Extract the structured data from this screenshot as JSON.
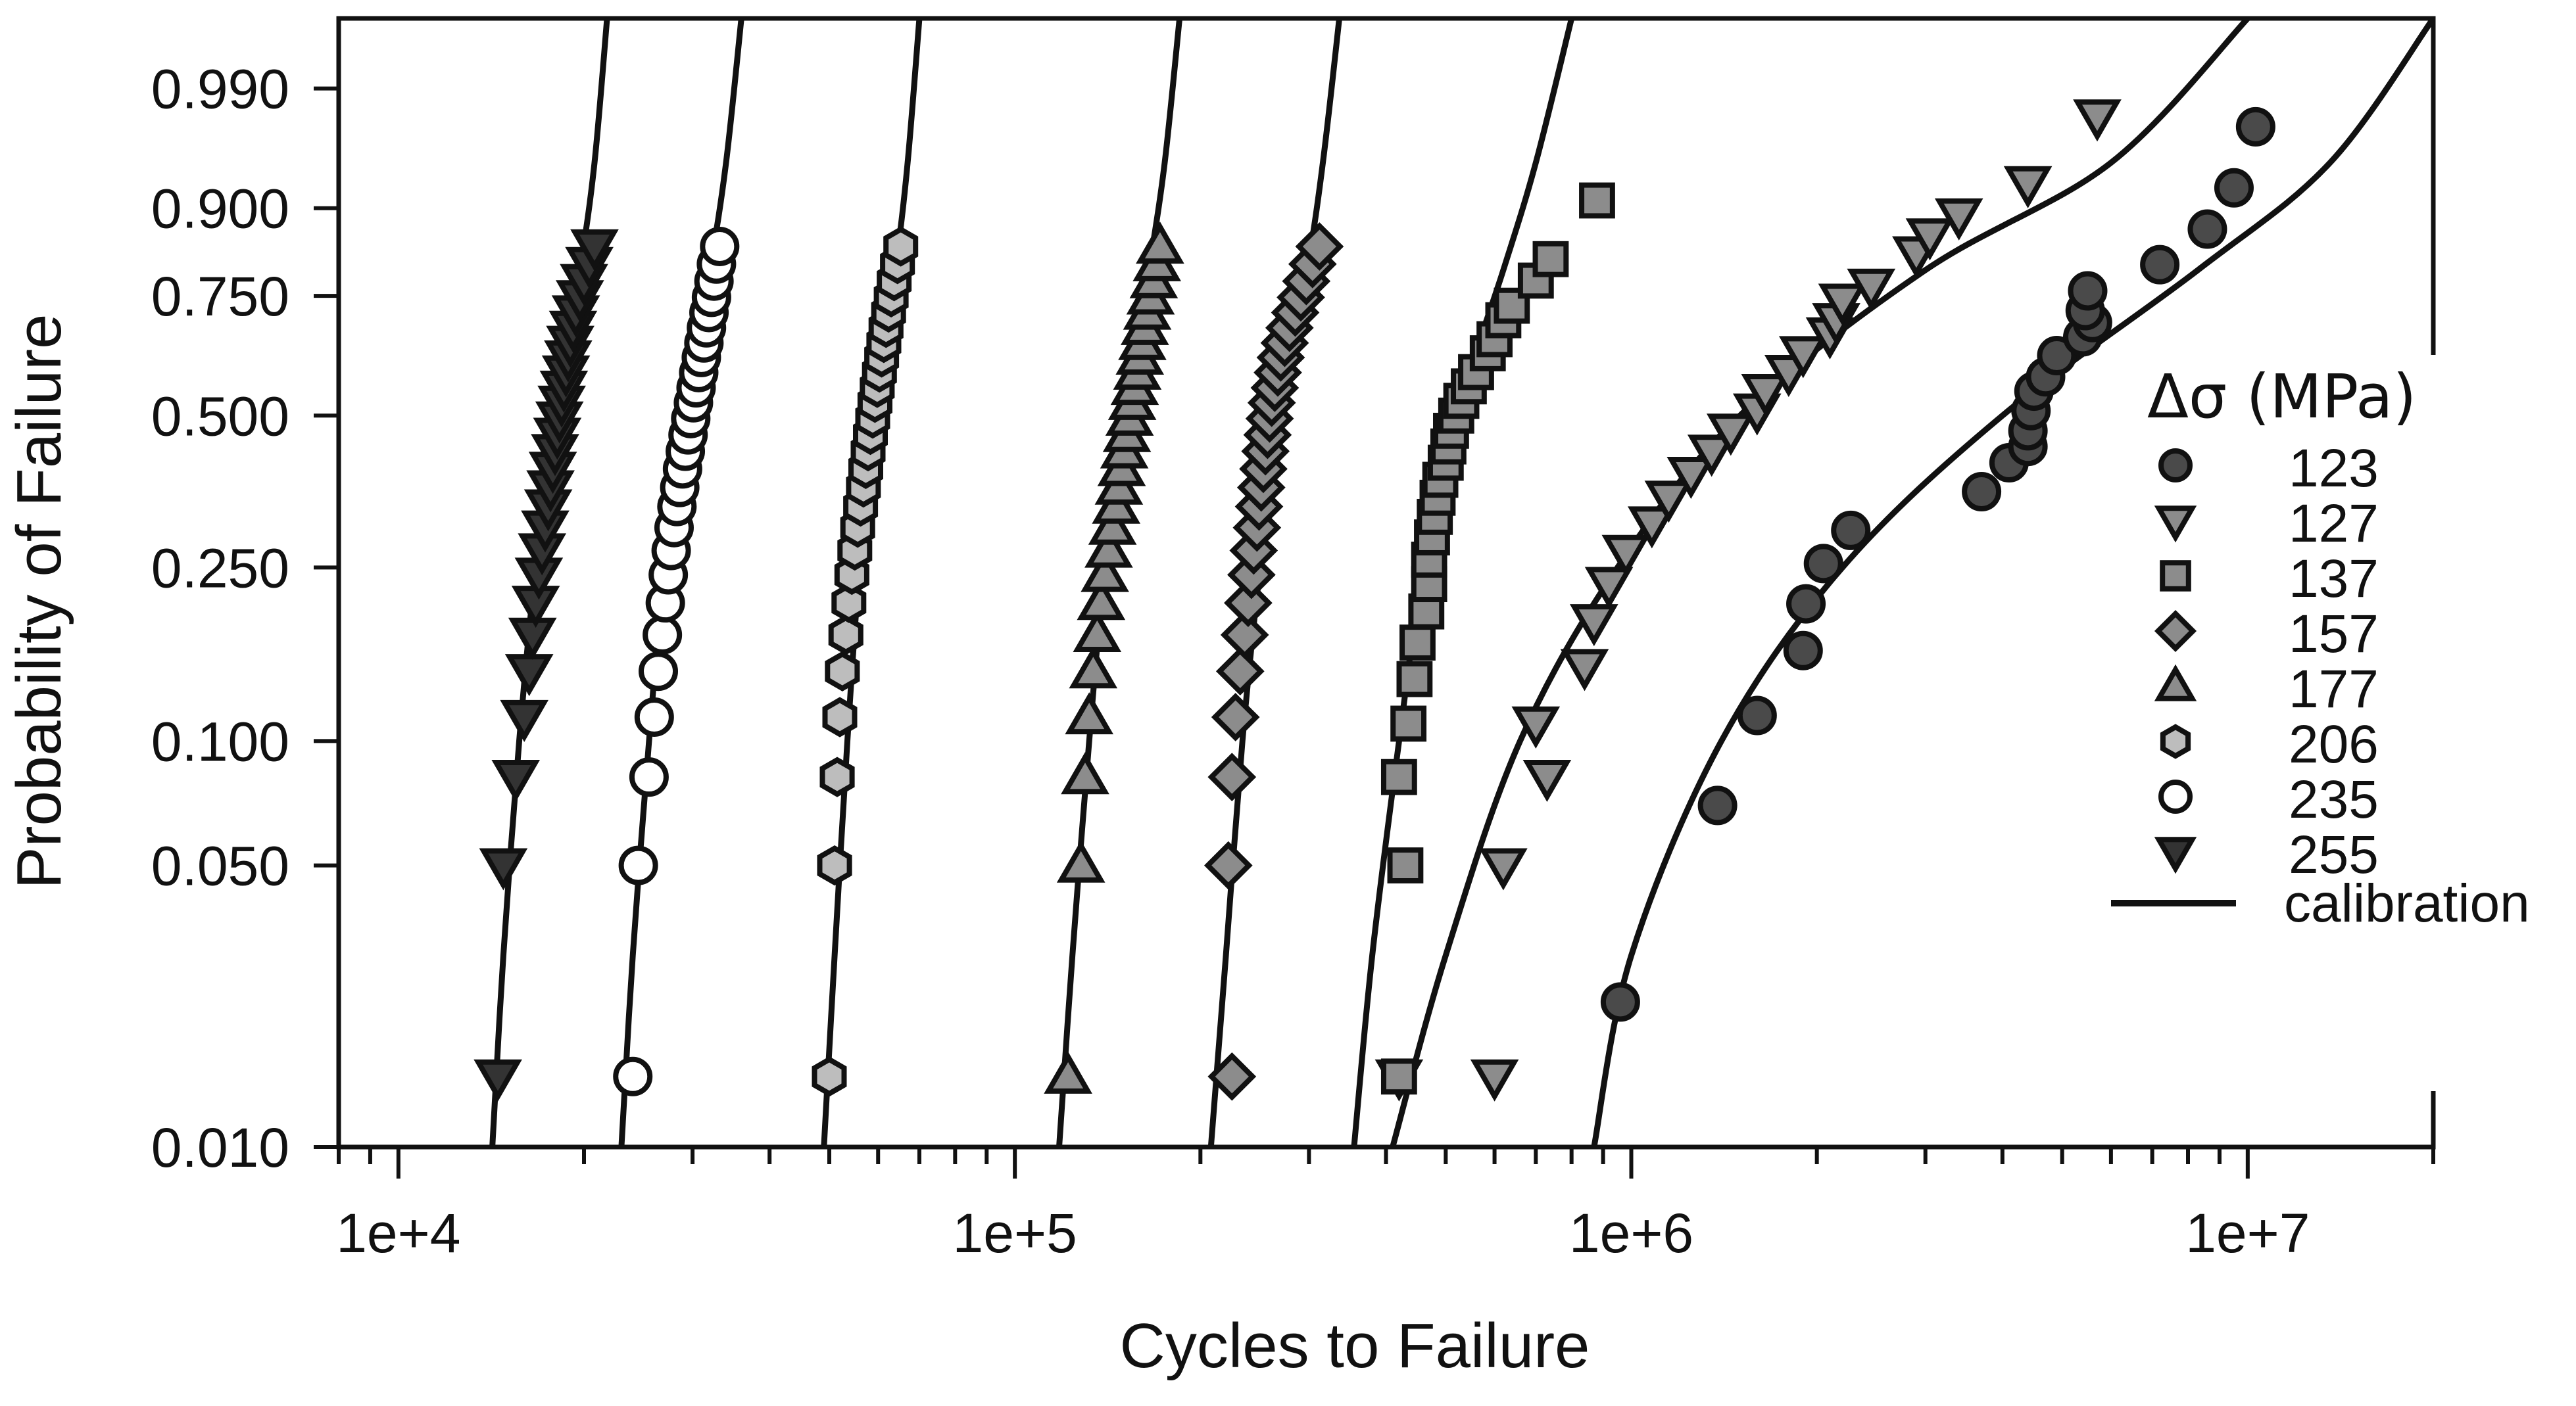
{
  "chart_data": {
    "type": "scatter",
    "xlabel": "Cycles to Failure",
    "ylabel": "Probability of Failure",
    "x_scale": "log",
    "y_scale": "weibull-probability",
    "xlim": [
      8000,
      20000000
    ],
    "ylim": [
      0.01,
      0.999
    ],
    "x_tick_labels": [
      "1e+4",
      "1e+5",
      "1e+6",
      "1e+7"
    ],
    "x_tick_values": [
      10000,
      100000,
      1000000,
      10000000
    ],
    "y_ticks": [
      0.01,
      0.05,
      0.1,
      0.25,
      0.5,
      0.75,
      0.9,
      0.99
    ],
    "y_tick_labels": [
      "0.010",
      "0.050",
      "0.100",
      "0.250",
      "0.500",
      "0.750",
      "0.900",
      "0.990"
    ],
    "legend": {
      "title": "Δσ (MPa)",
      "position": "right",
      "entries": [
        "123",
        "127",
        "137",
        "157",
        "177",
        "206",
        "235",
        "255",
        "calibration"
      ]
    },
    "series": [
      {
        "name": "123",
        "marker": "circle",
        "fill": "#4a4a4a",
        "size": 26,
        "x": [
          960000,
          1380000,
          1600000,
          1900000,
          1920000,
          2050000,
          2270000,
          3700000,
          4100000,
          4400000,
          4400000,
          4450000,
          4500000,
          4700000,
          4900000,
          5400000,
          5600000,
          5450000,
          5500000,
          7200000,
          8600000,
          9500000,
          10300000
        ],
        "y": [
          0.023,
          0.07,
          0.115,
          0.163,
          0.208,
          0.255,
          0.3,
          0.36,
          0.41,
          0.44,
          0.47,
          0.51,
          0.55,
          0.58,
          0.625,
          0.665,
          0.695,
          0.72,
          0.76,
          0.81,
          0.87,
          0.925,
          0.975
        ]
      },
      {
        "name": "127",
        "marker": "triangle-down",
        "fill": "#8c8c8c",
        "size": 26,
        "x": [
          420000,
          600000,
          620000,
          730000,
          700000,
          840000,
          870000,
          920000,
          980000,
          1080000,
          1150000,
          1250000,
          1350000,
          1450000,
          1600000,
          1650000,
          1800000,
          1900000,
          2100000,
          2150000,
          2200000,
          2450000,
          2900000,
          3050000,
          3400000,
          4400000,
          5700000
        ],
        "y": [
          0.015,
          0.015,
          0.05,
          0.082,
          0.11,
          0.15,
          0.19,
          0.23,
          0.27,
          0.31,
          0.35,
          0.39,
          0.43,
          0.47,
          0.51,
          0.55,
          0.59,
          0.63,
          0.67,
          0.7,
          0.74,
          0.77,
          0.83,
          0.86,
          0.89,
          0.93,
          0.98
        ]
      },
      {
        "name": "137",
        "marker": "square",
        "fill": "#8c8c8c",
        "size": 26,
        "x": [
          420000,
          430000,
          420000,
          435000,
          445000,
          450000,
          465000,
          470000,
          470000,
          475000,
          480000,
          485000,
          490000,
          500000,
          505000,
          510000,
          520000,
          530000,
          545000,
          560000,
          585000,
          600000,
          620000,
          640000,
          700000,
          740000,
          880000
        ],
        "y": [
          0.015,
          0.05,
          0.082,
          0.11,
          0.14,
          0.17,
          0.2,
          0.23,
          0.26,
          0.29,
          0.32,
          0.35,
          0.38,
          0.41,
          0.44,
          0.47,
          0.5,
          0.53,
          0.56,
          0.59,
          0.63,
          0.66,
          0.7,
          0.73,
          0.78,
          0.82,
          0.91
        ]
      },
      {
        "name": "157",
        "marker": "diamond",
        "fill": "#8c8c8c",
        "size": 26,
        "x": [
          225000,
          222000,
          225000,
          228000,
          232000,
          236000,
          239000,
          242000,
          244000,
          247000,
          249000,
          251000,
          253000,
          255000,
          257000,
          259000,
          261000,
          264000,
          267000,
          270000,
          274000,
          279000,
          285000,
          291000,
          297000,
          304000,
          312000
        ],
        "y": [
          0.015,
          0.05,
          0.082,
          0.114,
          0.146,
          0.177,
          0.209,
          0.241,
          0.272,
          0.304,
          0.336,
          0.367,
          0.399,
          0.431,
          0.462,
          0.494,
          0.526,
          0.557,
          0.589,
          0.621,
          0.652,
          0.684,
          0.716,
          0.747,
          0.779,
          0.811,
          0.842
        ]
      },
      {
        "name": "177",
        "marker": "triangle-up",
        "fill": "#8c8c8c",
        "size": 26,
        "x": [
          122000,
          128000,
          130000,
          132000,
          134000,
          136000,
          138000,
          140000,
          142000,
          144000,
          146000,
          147500,
          149000,
          150500,
          152000,
          153500,
          155000,
          156500,
          158000,
          159500,
          161000,
          162500,
          164000,
          166000,
          168000,
          170000,
          172000
        ],
        "y": [
          0.015,
          0.05,
          0.082,
          0.114,
          0.146,
          0.177,
          0.209,
          0.241,
          0.272,
          0.304,
          0.336,
          0.367,
          0.399,
          0.431,
          0.462,
          0.494,
          0.526,
          0.557,
          0.589,
          0.621,
          0.652,
          0.684,
          0.716,
          0.747,
          0.779,
          0.811,
          0.842
        ]
      },
      {
        "name": "206",
        "marker": "hexagon",
        "fill": "#bdbdbd",
        "size": 26,
        "x": [
          50000,
          51000,
          51500,
          52000,
          52500,
          53200,
          53800,
          54400,
          55000,
          55600,
          56200,
          56800,
          57300,
          57800,
          58300,
          58800,
          59300,
          59800,
          60300,
          60800,
          61300,
          61800,
          62400,
          63000,
          63700,
          64500,
          65300
        ],
        "y": [
          0.015,
          0.05,
          0.082,
          0.114,
          0.146,
          0.177,
          0.209,
          0.241,
          0.272,
          0.304,
          0.336,
          0.367,
          0.399,
          0.431,
          0.462,
          0.494,
          0.526,
          0.557,
          0.589,
          0.621,
          0.652,
          0.684,
          0.716,
          0.747,
          0.779,
          0.811,
          0.842
        ]
      },
      {
        "name": "235",
        "marker": "circle-open",
        "fill": "#ffffff",
        "size": 26,
        "x": [
          24000,
          24500,
          25500,
          26000,
          26400,
          26800,
          27100,
          27400,
          27700,
          28000,
          28300,
          28600,
          28900,
          29200,
          29500,
          29800,
          30100,
          30400,
          30700,
          31000,
          31300,
          31600,
          31900,
          32200,
          32500,
          32800,
          33200
        ],
        "y": [
          0.015,
          0.05,
          0.082,
          0.114,
          0.146,
          0.177,
          0.209,
          0.241,
          0.272,
          0.304,
          0.336,
          0.367,
          0.399,
          0.431,
          0.462,
          0.494,
          0.526,
          0.557,
          0.589,
          0.621,
          0.652,
          0.684,
          0.716,
          0.747,
          0.779,
          0.811,
          0.842
        ]
      },
      {
        "name": "255",
        "marker": "triangle-down",
        "fill": "#333333",
        "size": 26,
        "x": [
          14500,
          14800,
          15500,
          16000,
          16300,
          16500,
          16700,
          16900,
          17100,
          17300,
          17500,
          17650,
          17800,
          17950,
          18100,
          18250,
          18400,
          18550,
          18700,
          18850,
          19000,
          19200,
          19400,
          19700,
          20000,
          20400,
          20800
        ],
        "y": [
          0.015,
          0.05,
          0.082,
          0.114,
          0.146,
          0.177,
          0.209,
          0.241,
          0.272,
          0.304,
          0.336,
          0.367,
          0.399,
          0.431,
          0.462,
          0.494,
          0.526,
          0.557,
          0.589,
          0.621,
          0.652,
          0.684,
          0.716,
          0.747,
          0.779,
          0.811,
          0.842
        ]
      }
    ],
    "calibration_curves": [
      {
        "x": [
          14200,
          14800,
          15700,
          16700,
          18000,
          19700,
          20800,
          21800
        ],
        "y": [
          0.01,
          0.03,
          0.1,
          0.25,
          0.5,
          0.8,
          0.95,
          0.999
        ]
      },
      {
        "x": [
          23000,
          24000,
          25500,
          27000,
          29000,
          32000,
          34000,
          36000
        ],
        "y": [
          0.01,
          0.03,
          0.1,
          0.25,
          0.5,
          0.8,
          0.95,
          0.999
        ]
      },
      {
        "x": [
          49000,
          51000,
          53500,
          56000,
          59500,
          64000,
          67000,
          70000
        ],
        "y": [
          0.01,
          0.03,
          0.1,
          0.25,
          0.5,
          0.8,
          0.95,
          0.999
        ]
      },
      {
        "x": [
          118000,
          124000,
          132000,
          140000,
          151000,
          165000,
          175000,
          185000
        ],
        "y": [
          0.01,
          0.03,
          0.1,
          0.25,
          0.5,
          0.8,
          0.95,
          0.999
        ]
      },
      {
        "x": [
          208000,
          220000,
          234000,
          250000,
          270000,
          298000,
          316000,
          336000
        ],
        "y": [
          0.01,
          0.03,
          0.1,
          0.25,
          0.5,
          0.8,
          0.95,
          0.999
        ]
      },
      {
        "x": [
          355000,
          380000,
          420000,
          460000,
          520000,
          620000,
          700000,
          800000
        ],
        "y": [
          0.01,
          0.03,
          0.1,
          0.25,
          0.5,
          0.8,
          0.95,
          0.999
        ]
      },
      {
        "x": [
          410000,
          500000,
          660000,
          950000,
          1500000,
          3000000,
          6000000,
          10000000
        ],
        "y": [
          0.01,
          0.03,
          0.1,
          0.25,
          0.5,
          0.8,
          0.95,
          0.999
        ]
      },
      {
        "x": [
          870000,
          1000000,
          1400000,
          2200000,
          4000000,
          8300000,
          13600000,
          20000000
        ],
        "y": [
          0.01,
          0.03,
          0.1,
          0.25,
          0.5,
          0.8,
          0.95,
          0.999
        ]
      }
    ]
  }
}
